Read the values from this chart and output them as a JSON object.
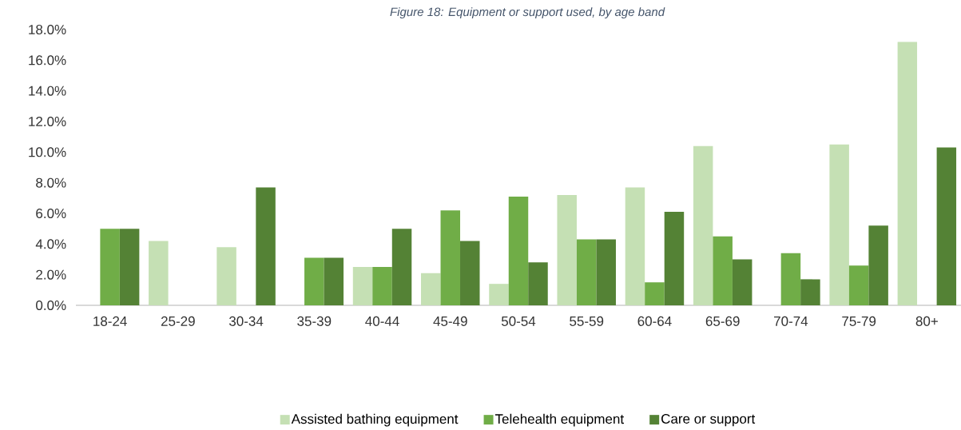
{
  "chart_data": {
    "type": "bar",
    "title": "Figure 18: Equipment or support used, by age band",
    "categories": [
      "18-24",
      "25-29",
      "30-34",
      "35-39",
      "40-44",
      "45-49",
      "50-54",
      "55-59",
      "60-64",
      "65-69",
      "70-74",
      "75-79",
      "80+"
    ],
    "series": [
      {
        "name": "Assisted bathing equipment",
        "color": "#c5e0b4",
        "values": [
          0,
          4.2,
          3.8,
          0,
          2.5,
          2.1,
          1.4,
          7.2,
          7.7,
          10.4,
          0,
          10.5,
          17.2
        ]
      },
      {
        "name": "Telehealth equipment",
        "color": "#70ad47",
        "values": [
          5.0,
          0,
          0,
          3.1,
          2.5,
          6.2,
          7.1,
          4.3,
          1.5,
          4.5,
          3.4,
          2.6,
          0
        ]
      },
      {
        "name": "Care or support",
        "color": "#548235",
        "values": [
          5.0,
          0,
          7.7,
          3.1,
          5.0,
          4.2,
          2.8,
          4.3,
          6.1,
          3.0,
          1.7,
          5.2,
          10.3
        ]
      }
    ],
    "ylim": [
      0,
      18
    ],
    "yticks": [
      {
        "value": 0,
        "label": "0.0%"
      },
      {
        "value": 2,
        "label": "2.0%"
      },
      {
        "value": 4,
        "label": "4.0%"
      },
      {
        "value": 6,
        "label": "6.0%"
      },
      {
        "value": 8,
        "label": "8.0%"
      },
      {
        "value": 10,
        "label": "10.0%"
      },
      {
        "value": 12,
        "label": "12.0%"
      },
      {
        "value": 14,
        "label": "14.0%"
      },
      {
        "value": 16,
        "label": "16.0%"
      },
      {
        "value": 18,
        "label": "18.0%"
      }
    ],
    "grid": false,
    "legend": "bottom"
  }
}
